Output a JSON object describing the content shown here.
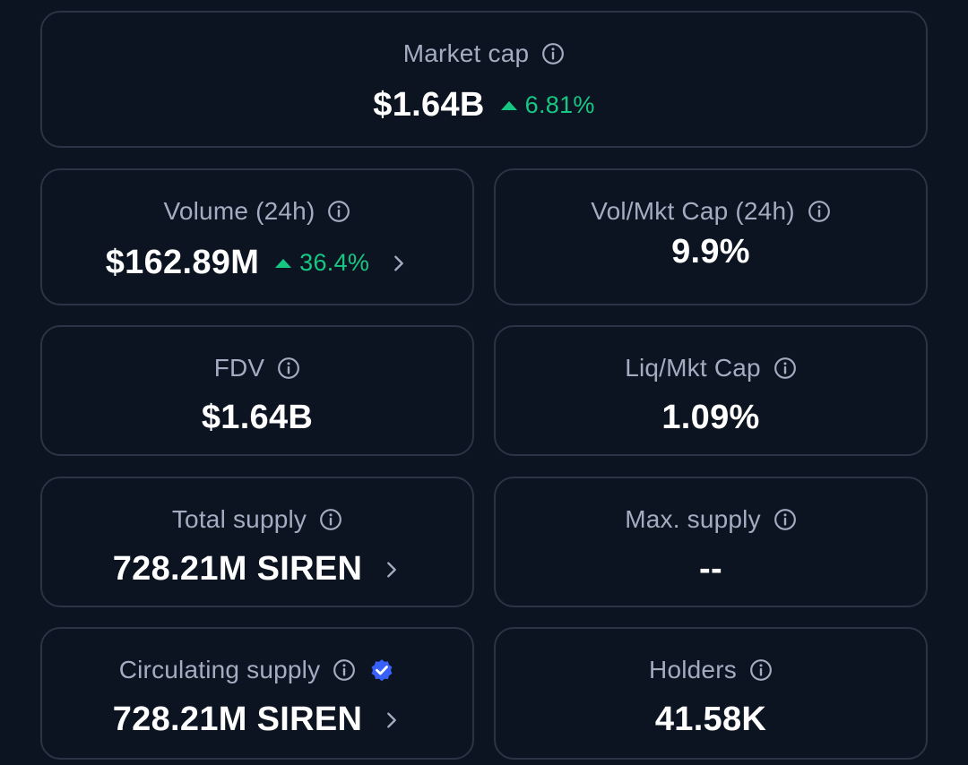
{
  "market_cap": {
    "label": "Market cap",
    "value": "$1.64B",
    "change": "6.81%"
  },
  "volume": {
    "label": "Volume (24h)",
    "value": "$162.89M",
    "change": "36.4%"
  },
  "vol_mkt_cap": {
    "label": "Vol/Mkt Cap (24h)",
    "value": "9.9%"
  },
  "fdv": {
    "label": "FDV",
    "value": "$1.64B"
  },
  "liq_mkt_cap": {
    "label": "Liq/Mkt Cap",
    "value": "1.09%"
  },
  "total_supply": {
    "label": "Total supply",
    "value": "728.21M SIREN"
  },
  "max_supply": {
    "label": "Max. supply",
    "value": "--"
  },
  "circulating_supply": {
    "label": "Circulating supply",
    "value": "728.21M SIREN"
  },
  "holders": {
    "label": "Holders",
    "value": "41.58K"
  },
  "colors": {
    "positive": "#16c784",
    "verified": "#3861fb",
    "border": "#2b3344",
    "background": "#0d1421"
  }
}
